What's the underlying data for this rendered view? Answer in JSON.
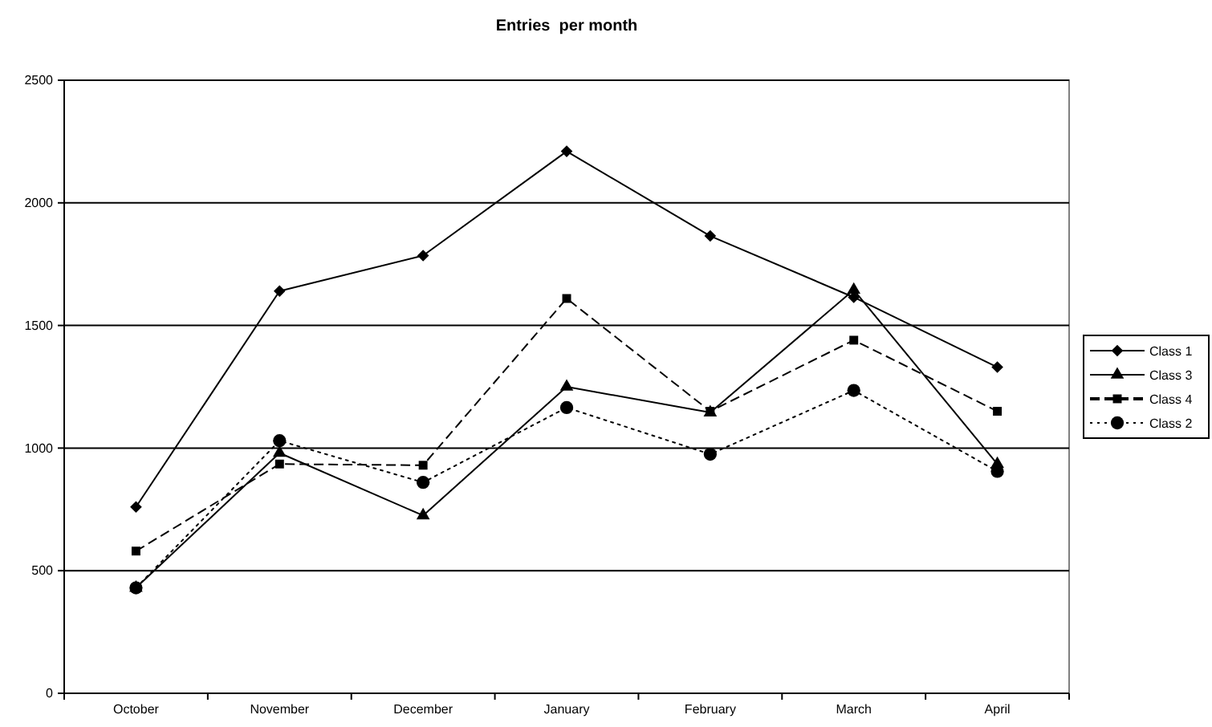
{
  "chart_data": {
    "type": "line",
    "title": "Entries  per month",
    "categories": [
      "October",
      "November",
      "December",
      "January",
      "February",
      "March",
      "April"
    ],
    "series": [
      {
        "name": "Class 1",
        "color": "#000000",
        "marker": "diamond",
        "line_style": "solid",
        "values": [
          760,
          1640,
          1785,
          2210,
          1865,
          1615,
          1330
        ]
      },
      {
        "name": "Class 3",
        "color": "#000000",
        "marker": "triangle",
        "line_style": "solid",
        "values": [
          430,
          980,
          725,
          1250,
          1145,
          1645,
          935
        ]
      },
      {
        "name": "Class 4",
        "color": "#000000",
        "marker": "square",
        "line_style": "dashed",
        "values": [
          580,
          935,
          930,
          1610,
          1150,
          1440,
          1150
        ]
      },
      {
        "name": "Class 2",
        "color": "#000000",
        "marker": "circle",
        "line_style": "dotted",
        "values": [
          430,
          1030,
          860,
          1165,
          975,
          1235,
          905
        ]
      }
    ],
    "ylim": [
      0,
      2500
    ],
    "yticks": [
      0,
      500,
      1000,
      1500,
      2000,
      2500
    ],
    "grid": "y",
    "legend": "right"
  }
}
